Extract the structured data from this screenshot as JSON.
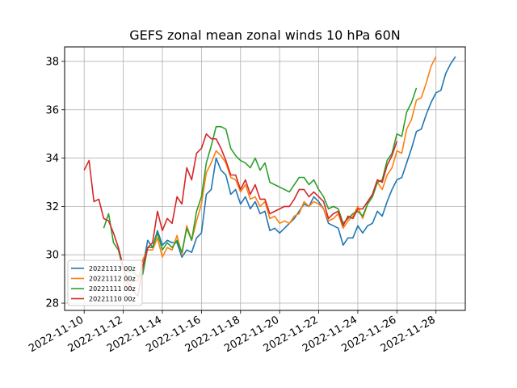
{
  "chart_data": {
    "type": "line",
    "title": "GEFS zonal mean zonal winds 10 hPa 60N",
    "xlabel": "",
    "ylabel": "",
    "x_axis": {
      "type": "date",
      "min": "2022-11-09",
      "max": "2022-11-29T12:00",
      "ticks": [
        "2022-11-10",
        "2022-11-12",
        "2022-11-14",
        "2022-11-16",
        "2022-11-18",
        "2022-11-20",
        "2022-11-22",
        "2022-11-24",
        "2022-11-26",
        "2022-11-28"
      ]
    },
    "y_axis": {
      "min": 27.7,
      "max": 38.6,
      "ticks": [
        "28",
        "30",
        "32",
        "34",
        "36",
        "38"
      ]
    },
    "grid": true,
    "legend_placement": "lower-left",
    "series": [
      {
        "name": "20221113 00z",
        "color": "#1f77b4",
        "points": [
          [
            "2022-11-13T00",
            29.5
          ],
          [
            "2022-11-13T06",
            30.6
          ],
          [
            "2022-11-13T12",
            30.3
          ],
          [
            "2022-11-13T18",
            31.0
          ],
          [
            "2022-11-14T00",
            30.4
          ],
          [
            "2022-11-14T06",
            30.6
          ],
          [
            "2022-11-14T12",
            30.5
          ],
          [
            "2022-11-14T18",
            30.5
          ],
          [
            "2022-11-15T00",
            29.9
          ],
          [
            "2022-11-15T06",
            30.2
          ],
          [
            "2022-11-15T12",
            30.1
          ],
          [
            "2022-11-15T18",
            30.7
          ],
          [
            "2022-11-16T00",
            30.9
          ],
          [
            "2022-11-16T06",
            32.5
          ],
          [
            "2022-11-16T12",
            32.7
          ],
          [
            "2022-11-16T18",
            34.0
          ],
          [
            "2022-11-17T00",
            33.5
          ],
          [
            "2022-11-17T06",
            33.3
          ],
          [
            "2022-11-17T12",
            32.5
          ],
          [
            "2022-11-17T18",
            32.7
          ],
          [
            "2022-11-18T00",
            32.1
          ],
          [
            "2022-11-18T06",
            32.4
          ],
          [
            "2022-11-18T12",
            31.9
          ],
          [
            "2022-11-18T18",
            32.2
          ],
          [
            "2022-11-19T00",
            31.7
          ],
          [
            "2022-11-19T06",
            31.8
          ],
          [
            "2022-11-19T12",
            31.0
          ],
          [
            "2022-11-19T18",
            31.1
          ],
          [
            "2022-11-20T00",
            30.9
          ],
          [
            "2022-11-20T06",
            31.1
          ],
          [
            "2022-11-20T12",
            31.3
          ],
          [
            "2022-11-20T18",
            31.5
          ],
          [
            "2022-11-21T00",
            31.8
          ],
          [
            "2022-11-21T06",
            32.1
          ],
          [
            "2022-11-21T12",
            32.0
          ],
          [
            "2022-11-21T18",
            32.4
          ],
          [
            "2022-11-22T00",
            32.2
          ],
          [
            "2022-11-22T06",
            31.9
          ],
          [
            "2022-11-22T12",
            31.3
          ],
          [
            "2022-11-22T18",
            31.2
          ],
          [
            "2022-11-23T00",
            31.1
          ],
          [
            "2022-11-23T06",
            30.4
          ],
          [
            "2022-11-23T12",
            30.7
          ],
          [
            "2022-11-23T18",
            30.7
          ],
          [
            "2022-11-24T00",
            31.2
          ],
          [
            "2022-11-24T06",
            30.9
          ],
          [
            "2022-11-24T12",
            31.2
          ],
          [
            "2022-11-24T18",
            31.3
          ],
          [
            "2022-11-25T00",
            31.8
          ],
          [
            "2022-11-25T06",
            31.6
          ],
          [
            "2022-11-25T12",
            32.2
          ],
          [
            "2022-11-25T18",
            32.7
          ],
          [
            "2022-11-26T00",
            33.1
          ],
          [
            "2022-11-26T06",
            33.2
          ],
          [
            "2022-11-26T12",
            33.8
          ],
          [
            "2022-11-26T18",
            34.4
          ],
          [
            "2022-11-27T00",
            35.1
          ],
          [
            "2022-11-27T06",
            35.2
          ],
          [
            "2022-11-27T12",
            35.8
          ],
          [
            "2022-11-27T18",
            36.3
          ],
          [
            "2022-11-28T00",
            36.7
          ],
          [
            "2022-11-28T06",
            36.8
          ],
          [
            "2022-11-28T12",
            37.5
          ],
          [
            "2022-11-28T18",
            37.9
          ],
          [
            "2022-11-29T00",
            38.2
          ]
        ]
      },
      {
        "name": "20221112 00z",
        "color": "#ff7f0e",
        "points": [
          [
            "2022-11-12T00",
            29.0
          ],
          [
            "2022-11-12T06",
            28.5
          ],
          [
            "2022-11-12T12",
            29.0
          ],
          [
            "2022-11-12T18",
            28.9
          ],
          [
            "2022-11-13T00",
            29.8
          ],
          [
            "2022-11-13T06",
            30.2
          ],
          [
            "2022-11-13T12",
            30.2
          ],
          [
            "2022-11-13T18",
            30.7
          ],
          [
            "2022-11-14T00",
            29.9
          ],
          [
            "2022-11-14T06",
            30.3
          ],
          [
            "2022-11-14T12",
            30.2
          ],
          [
            "2022-11-14T18",
            30.8
          ],
          [
            "2022-11-15T00",
            30.0
          ],
          [
            "2022-11-15T06",
            31.2
          ],
          [
            "2022-11-15T12",
            30.6
          ],
          [
            "2022-11-15T18",
            31.4
          ],
          [
            "2022-11-16T00",
            32.1
          ],
          [
            "2022-11-16T06",
            33.4
          ],
          [
            "2022-11-16T12",
            33.8
          ],
          [
            "2022-11-16T18",
            34.3
          ],
          [
            "2022-11-17T00",
            34.1
          ],
          [
            "2022-11-17T06",
            33.8
          ],
          [
            "2022-11-17T12",
            33.2
          ],
          [
            "2022-11-17T18",
            33.1
          ],
          [
            "2022-11-18T00",
            32.6
          ],
          [
            "2022-11-18T06",
            32.9
          ],
          [
            "2022-11-18T12",
            32.3
          ],
          [
            "2022-11-18T18",
            32.4
          ],
          [
            "2022-11-19T00",
            32.0
          ],
          [
            "2022-11-19T06",
            32.2
          ],
          [
            "2022-11-19T12",
            31.5
          ],
          [
            "2022-11-19T18",
            31.6
          ],
          [
            "2022-11-20T00",
            31.3
          ],
          [
            "2022-11-20T06",
            31.4
          ],
          [
            "2022-11-20T12",
            31.3
          ],
          [
            "2022-11-20T18",
            31.6
          ],
          [
            "2022-11-21T00",
            31.7
          ],
          [
            "2022-11-21T06",
            32.2
          ],
          [
            "2022-11-21T12",
            32.0
          ],
          [
            "2022-11-21T18",
            32.2
          ],
          [
            "2022-11-22T00",
            32.1
          ],
          [
            "2022-11-22T06",
            31.9
          ],
          [
            "2022-11-22T12",
            31.4
          ],
          [
            "2022-11-22T18",
            31.5
          ],
          [
            "2022-11-23T00",
            31.7
          ],
          [
            "2022-11-23T06",
            31.1
          ],
          [
            "2022-11-23T12",
            31.4
          ],
          [
            "2022-11-23T18",
            31.6
          ],
          [
            "2022-11-24T00",
            32.0
          ],
          [
            "2022-11-24T06",
            31.5
          ],
          [
            "2022-11-24T12",
            32.1
          ],
          [
            "2022-11-24T18",
            32.4
          ],
          [
            "2022-11-25T00",
            33.0
          ],
          [
            "2022-11-25T06",
            32.7
          ],
          [
            "2022-11-25T12",
            33.3
          ],
          [
            "2022-11-25T18",
            33.6
          ],
          [
            "2022-11-26T00",
            34.3
          ],
          [
            "2022-11-26T06",
            34.2
          ],
          [
            "2022-11-26T12",
            35.2
          ],
          [
            "2022-11-26T18",
            35.6
          ],
          [
            "2022-11-27T00",
            36.4
          ],
          [
            "2022-11-27T06",
            36.5
          ],
          [
            "2022-11-27T12",
            37.1
          ],
          [
            "2022-11-27T18",
            37.8
          ],
          [
            "2022-11-28T00",
            38.2
          ]
        ]
      },
      {
        "name": "20221111 00z",
        "color": "#2ca02c",
        "points": [
          [
            "2022-11-11T00",
            31.1
          ],
          [
            "2022-11-11T06",
            31.7
          ],
          [
            "2022-11-11T12",
            30.5
          ],
          [
            "2022-11-11T18",
            30.2
          ],
          [
            "2022-11-12T00",
            29.4
          ],
          [
            "2022-11-12T06",
            29.3
          ],
          [
            "2022-11-12T12",
            29.3
          ],
          [
            "2022-11-12T18",
            29.1
          ],
          [
            "2022-11-13T00",
            29.2
          ],
          [
            "2022-11-13T06",
            30.3
          ],
          [
            "2022-11-13T12",
            30.3
          ],
          [
            "2022-11-13T18",
            30.9
          ],
          [
            "2022-11-14T00",
            30.2
          ],
          [
            "2022-11-14T06",
            30.5
          ],
          [
            "2022-11-14T12",
            30.3
          ],
          [
            "2022-11-14T18",
            30.6
          ],
          [
            "2022-11-15T00",
            30.1
          ],
          [
            "2022-11-15T06",
            31.1
          ],
          [
            "2022-11-15T12",
            30.6
          ],
          [
            "2022-11-15T18",
            31.8
          ],
          [
            "2022-11-16T00",
            32.4
          ],
          [
            "2022-11-16T06",
            33.8
          ],
          [
            "2022-11-16T12",
            34.5
          ],
          [
            "2022-11-16T18",
            35.3
          ],
          [
            "2022-11-17T00",
            35.3
          ],
          [
            "2022-11-17T06",
            35.2
          ],
          [
            "2022-11-17T12",
            34.4
          ],
          [
            "2022-11-17T18",
            34.1
          ],
          [
            "2022-11-18T00",
            33.9
          ],
          [
            "2022-11-18T06",
            33.8
          ],
          [
            "2022-11-18T12",
            33.6
          ],
          [
            "2022-11-18T18",
            34.0
          ],
          [
            "2022-11-19T00",
            33.5
          ],
          [
            "2022-11-19T06",
            33.8
          ],
          [
            "2022-11-19T12",
            33.0
          ],
          [
            "2022-11-19T18",
            32.9
          ],
          [
            "2022-11-20T00",
            32.8
          ],
          [
            "2022-11-20T06",
            32.7
          ],
          [
            "2022-11-20T12",
            32.6
          ],
          [
            "2022-11-20T18",
            32.9
          ],
          [
            "2022-11-21T00",
            33.2
          ],
          [
            "2022-11-21T06",
            33.2
          ],
          [
            "2022-11-21T12",
            32.9
          ],
          [
            "2022-11-21T18",
            33.1
          ],
          [
            "2022-11-22T00",
            32.7
          ],
          [
            "2022-11-22T06",
            32.4
          ],
          [
            "2022-11-22T12",
            31.9
          ],
          [
            "2022-11-22T18",
            32.0
          ],
          [
            "2022-11-23T00",
            31.9
          ],
          [
            "2022-11-23T06",
            31.3
          ],
          [
            "2022-11-23T12",
            31.5
          ],
          [
            "2022-11-23T18",
            31.7
          ],
          [
            "2022-11-24T00",
            31.8
          ],
          [
            "2022-11-24T06",
            31.6
          ],
          [
            "2022-11-24T12",
            32.1
          ],
          [
            "2022-11-24T18",
            32.4
          ],
          [
            "2022-11-25T00",
            33.0
          ],
          [
            "2022-11-25T06",
            33.1
          ],
          [
            "2022-11-25T12",
            33.9
          ],
          [
            "2022-11-25T18",
            34.2
          ],
          [
            "2022-11-26T00",
            35.0
          ],
          [
            "2022-11-26T06",
            34.9
          ],
          [
            "2022-11-26T12",
            35.9
          ],
          [
            "2022-11-26T18",
            36.3
          ],
          [
            "2022-11-27T00",
            36.9
          ]
        ]
      },
      {
        "name": "20221110 00z",
        "color": "#d62728",
        "points": [
          [
            "2022-11-10T00",
            33.5
          ],
          [
            "2022-11-10T06",
            33.9
          ],
          [
            "2022-11-10T12",
            32.2
          ],
          [
            "2022-11-10T18",
            32.3
          ],
          [
            "2022-11-11T00",
            31.5
          ],
          [
            "2022-11-11T06",
            31.4
          ],
          [
            "2022-11-11T12",
            30.9
          ],
          [
            "2022-11-11T18",
            30.3
          ],
          [
            "2022-11-12T00",
            29.5
          ],
          [
            "2022-11-12T06",
            28.8
          ],
          [
            "2022-11-12T12",
            28.5
          ],
          [
            "2022-11-12T18",
            28.3
          ],
          [
            "2022-11-13T00",
            29.5
          ],
          [
            "2022-11-13T06",
            30.3
          ],
          [
            "2022-11-13T12",
            30.5
          ],
          [
            "2022-11-13T18",
            31.8
          ],
          [
            "2022-11-14T00",
            31.0
          ],
          [
            "2022-11-14T06",
            31.5
          ],
          [
            "2022-11-14T12",
            31.3
          ],
          [
            "2022-11-14T18",
            32.4
          ],
          [
            "2022-11-15T00",
            32.1
          ],
          [
            "2022-11-15T06",
            33.6
          ],
          [
            "2022-11-15T12",
            33.1
          ],
          [
            "2022-11-15T18",
            34.2
          ],
          [
            "2022-11-16T00",
            34.4
          ],
          [
            "2022-11-16T06",
            35.0
          ],
          [
            "2022-11-16T12",
            34.8
          ],
          [
            "2022-11-16T18",
            34.8
          ],
          [
            "2022-11-17T00",
            34.4
          ],
          [
            "2022-11-17T06",
            33.9
          ],
          [
            "2022-11-17T12",
            33.3
          ],
          [
            "2022-11-17T18",
            33.3
          ],
          [
            "2022-11-18T00",
            32.7
          ],
          [
            "2022-11-18T06",
            33.1
          ],
          [
            "2022-11-18T12",
            32.5
          ],
          [
            "2022-11-18T18",
            32.9
          ],
          [
            "2022-11-19T00",
            32.3
          ],
          [
            "2022-11-19T06",
            32.3
          ],
          [
            "2022-11-19T12",
            31.7
          ],
          [
            "2022-11-19T18",
            31.8
          ],
          [
            "2022-11-20T00",
            31.9
          ],
          [
            "2022-11-20T06",
            32.0
          ],
          [
            "2022-11-20T12",
            32.0
          ],
          [
            "2022-11-20T18",
            32.3
          ],
          [
            "2022-11-21T00",
            32.7
          ],
          [
            "2022-11-21T06",
            32.7
          ],
          [
            "2022-11-21T12",
            32.4
          ],
          [
            "2022-11-21T18",
            32.6
          ],
          [
            "2022-11-22T00",
            32.4
          ],
          [
            "2022-11-22T06",
            32.2
          ],
          [
            "2022-11-22T12",
            31.5
          ],
          [
            "2022-11-22T18",
            31.7
          ],
          [
            "2022-11-23T00",
            31.8
          ],
          [
            "2022-11-23T06",
            31.2
          ],
          [
            "2022-11-23T12",
            31.6
          ],
          [
            "2022-11-23T18",
            31.5
          ],
          [
            "2022-11-24T00",
            31.9
          ],
          [
            "2022-11-24T06",
            31.9
          ],
          [
            "2022-11-24T12",
            32.2
          ],
          [
            "2022-11-24T18",
            32.5
          ],
          [
            "2022-11-25T00",
            33.1
          ],
          [
            "2022-11-25T06",
            33.0
          ],
          [
            "2022-11-25T12",
            33.7
          ],
          [
            "2022-11-25T18",
            34.1
          ],
          [
            "2022-11-26T00",
            34.7
          ]
        ]
      }
    ]
  }
}
